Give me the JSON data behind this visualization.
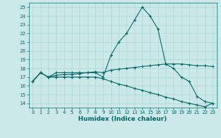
{
  "xlabel": "Humidex (Indice chaleur)",
  "ylabel": "",
  "xlim": [
    -0.5,
    23.5
  ],
  "ylim": [
    13.5,
    25.5
  ],
  "xticks": [
    0,
    1,
    2,
    3,
    4,
    5,
    6,
    7,
    8,
    9,
    10,
    11,
    12,
    13,
    14,
    15,
    16,
    17,
    18,
    19,
    20,
    21,
    22,
    23
  ],
  "yticks": [
    14,
    15,
    16,
    17,
    18,
    19,
    20,
    21,
    22,
    23,
    24,
    25
  ],
  "background_color": "#cce9e9",
  "grid_color": "#aad4d4",
  "line_color": "#006666",
  "line1_x": [
    0,
    1,
    2,
    3,
    4,
    5,
    6,
    7,
    8,
    9,
    10,
    11,
    12,
    13,
    14,
    15,
    16,
    17,
    18,
    19,
    20,
    21,
    22,
    23
  ],
  "line1_y": [
    16.5,
    17.5,
    17.0,
    17.5,
    17.5,
    17.5,
    17.5,
    17.5,
    17.5,
    17.0,
    19.5,
    21.0,
    22.0,
    23.5,
    25.0,
    24.0,
    22.5,
    18.5,
    18.0,
    17.0,
    16.5,
    14.8,
    14.2,
    14.0
  ],
  "line2_x": [
    0,
    1,
    2,
    3,
    4,
    5,
    6,
    7,
    8,
    9,
    10,
    11,
    12,
    13,
    14,
    15,
    16,
    17,
    18,
    19,
    20,
    21,
    22,
    23
  ],
  "line2_y": [
    16.5,
    17.5,
    17.0,
    17.2,
    17.3,
    17.3,
    17.4,
    17.5,
    17.6,
    17.5,
    17.8,
    17.9,
    18.0,
    18.1,
    18.2,
    18.3,
    18.4,
    18.5,
    18.5,
    18.5,
    18.4,
    18.3,
    18.3,
    18.2
  ],
  "line3_x": [
    0,
    1,
    2,
    3,
    4,
    5,
    6,
    7,
    8,
    9,
    10,
    11,
    12,
    13,
    14,
    15,
    16,
    17,
    18,
    19,
    20,
    21,
    22,
    23
  ],
  "line3_y": [
    16.5,
    17.5,
    17.0,
    17.0,
    17.0,
    17.0,
    17.0,
    17.0,
    17.0,
    16.8,
    16.5,
    16.2,
    16.0,
    15.7,
    15.5,
    15.2,
    15.0,
    14.7,
    14.5,
    14.2,
    14.0,
    13.8,
    13.6,
    14.0
  ],
  "marker": "+",
  "markersize": 3,
  "linewidth": 0.8,
  "tick_fontsize": 5.0,
  "xlabel_fontsize": 6.5,
  "fig_width": 3.2,
  "fig_height": 2.0,
  "dpi": 100
}
